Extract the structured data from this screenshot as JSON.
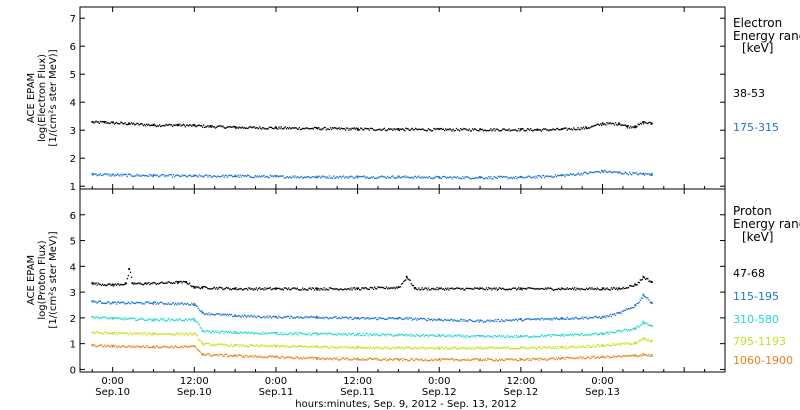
{
  "chart_data": [
    {
      "type": "scatter",
      "title": "",
      "ylabel": [
        "ACE EPAM",
        "log(Electron Flux)",
        "[1/(cm²s ster MeV)]"
      ],
      "ylim": [
        0.9,
        7.4
      ],
      "yticks": [
        1,
        2,
        3,
        4,
        5,
        6,
        7
      ],
      "xlim": [
        -0.2,
        3.75
      ],
      "legend_title": [
        "Electron",
        "Energy range",
        "[keV]"
      ],
      "series": [
        {
          "name": "38-53",
          "color": "#000000",
          "x": [
            -0.125,
            -0.05,
            0.0,
            0.1,
            0.25,
            0.4,
            0.5,
            0.6,
            0.75,
            1.0,
            1.25,
            1.5,
            1.75,
            2.0,
            2.25,
            2.5,
            2.6,
            2.75,
            2.9,
            3.0,
            3.1,
            3.15,
            3.2,
            3.25,
            3.3
          ],
          "y": [
            3.3,
            3.3,
            3.28,
            3.25,
            3.2,
            3.2,
            3.18,
            3.15,
            3.12,
            3.1,
            3.08,
            3.06,
            3.05,
            3.04,
            3.04,
            3.04,
            3.03,
            3.05,
            3.1,
            3.25,
            3.25,
            3.15,
            3.15,
            3.3,
            3.25
          ]
        },
        {
          "name": "175-315",
          "color": "#1e74d8",
          "x": [
            -0.125,
            0.0,
            0.25,
            0.5,
            0.75,
            1.0,
            1.25,
            1.5,
            1.75,
            2.0,
            2.25,
            2.5,
            2.75,
            3.0,
            3.1,
            3.25,
            3.3
          ],
          "y": [
            1.45,
            1.42,
            1.4,
            1.38,
            1.38,
            1.36,
            1.35,
            1.35,
            1.35,
            1.33,
            1.33,
            1.33,
            1.4,
            1.55,
            1.5,
            1.45,
            1.45
          ]
        }
      ]
    },
    {
      "type": "scatter",
      "title": "",
      "xlabel": "hours:minutes, Sep.  9, 2012 - Sep. 13, 2012",
      "ylabel": [
        "ACE EPAM",
        "log(Proton Flux)",
        "[1/(cm²s ster MeV)]"
      ],
      "ylim": [
        -0.1,
        7.0
      ],
      "yticks": [
        0,
        1,
        2,
        3,
        4,
        5,
        6
      ],
      "xlim": [
        -0.2,
        3.75
      ],
      "xtick_times": [
        "0:00",
        "12:00",
        "0:00",
        "12:00",
        "0:00",
        "12:00",
        "0:00"
      ],
      "xtick_dates": [
        "Sep.10",
        "Sep.10",
        "Sep.11",
        "Sep.11",
        "Sep.12",
        "Sep.12",
        "Sep.13"
      ],
      "legend_title": [
        "Proton",
        "Energy range",
        "[keV]"
      ],
      "series": [
        {
          "name": "47-68",
          "color": "#000000",
          "x": [
            -0.125,
            0.0,
            0.08,
            0.1,
            0.12,
            0.2,
            0.4,
            0.45,
            0.5,
            0.55,
            0.75,
            1.0,
            1.25,
            1.5,
            1.75,
            1.8,
            1.85,
            2.0,
            2.25,
            2.5,
            2.75,
            3.0,
            3.1,
            3.2,
            3.25,
            3.3
          ],
          "y": [
            3.35,
            3.3,
            3.35,
            3.9,
            3.35,
            3.35,
            3.4,
            3.4,
            3.2,
            3.2,
            3.15,
            3.15,
            3.15,
            3.15,
            3.2,
            3.6,
            3.15,
            3.15,
            3.15,
            3.15,
            3.15,
            3.15,
            3.15,
            3.3,
            3.6,
            3.4
          ]
        },
        {
          "name": "115-195",
          "color": "#1e74d8",
          "x": [
            -0.125,
            0.0,
            0.25,
            0.5,
            0.55,
            0.75,
            1.0,
            1.25,
            1.5,
            1.75,
            2.0,
            2.25,
            2.5,
            2.75,
            3.0,
            3.1,
            3.2,
            3.25,
            3.3
          ],
          "y": [
            2.65,
            2.6,
            2.6,
            2.55,
            2.2,
            2.1,
            2.05,
            2.05,
            2.0,
            2.0,
            1.95,
            1.9,
            1.95,
            2.0,
            2.05,
            2.2,
            2.5,
            2.9,
            2.6
          ]
        },
        {
          "name": "310-580",
          "color": "#22d8d0",
          "x": [
            -0.125,
            0.0,
            0.25,
            0.5,
            0.55,
            0.75,
            1.0,
            1.25,
            1.5,
            1.75,
            2.0,
            2.25,
            2.5,
            2.75,
            3.0,
            3.2,
            3.25,
            3.3
          ],
          "y": [
            2.05,
            2.0,
            1.95,
            1.95,
            1.5,
            1.45,
            1.42,
            1.4,
            1.38,
            1.35,
            1.33,
            1.3,
            1.3,
            1.35,
            1.4,
            1.6,
            1.85,
            1.7
          ]
        },
        {
          "name": "795-1193",
          "color": "#c8e020",
          "x": [
            -0.125,
            0.0,
            0.25,
            0.5,
            0.55,
            0.75,
            1.0,
            1.25,
            1.5,
            1.75,
            2.0,
            2.25,
            2.5,
            2.75,
            3.0,
            3.2,
            3.25,
            3.3
          ],
          "y": [
            1.45,
            1.42,
            1.4,
            1.4,
            1.0,
            0.95,
            0.92,
            0.9,
            0.88,
            0.85,
            0.85,
            0.85,
            0.85,
            0.88,
            0.95,
            1.05,
            1.2,
            1.1
          ]
        },
        {
          "name": "1060-1900",
          "color": "#e8821e",
          "x": [
            -0.125,
            0.0,
            0.25,
            0.5,
            0.55,
            0.75,
            1.0,
            1.25,
            1.5,
            1.75,
            2.0,
            2.25,
            2.5,
            2.75,
            3.0,
            3.2,
            3.25,
            3.3
          ],
          "y": [
            0.95,
            0.92,
            0.9,
            0.9,
            0.6,
            0.55,
            0.5,
            0.45,
            0.42,
            0.4,
            0.4,
            0.4,
            0.4,
            0.45,
            0.5,
            0.55,
            0.6,
            0.55
          ]
        }
      ]
    }
  ]
}
